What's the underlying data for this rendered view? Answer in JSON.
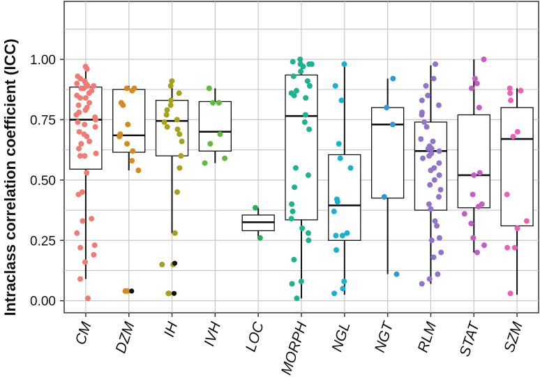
{
  "chart_data": {
    "type": "box",
    "title": "",
    "xlabel": "",
    "ylabel": "Intraclass correlation coefficient (ICC)",
    "ylim": [
      -0.05,
      1.24
    ],
    "yticks": [
      0.0,
      0.25,
      0.5,
      0.75,
      1.0
    ],
    "ytick_labels": [
      "0.00",
      "0.25",
      "0.50",
      "0.75",
      "1.00"
    ],
    "grid": true,
    "legend": "none",
    "categories": [
      "CM",
      "DZM",
      "IH",
      "IVH",
      "LOC",
      "MORPH",
      "NGL",
      "NGT",
      "RLM",
      "STAT",
      "SZM"
    ],
    "colors": [
      "#f07b73",
      "#d68a1c",
      "#a3a21a",
      "#63b940",
      "#22ad5a",
      "#1bb38e",
      "#17b2cf",
      "#2e98dd",
      "#8f74c9",
      "#c25ec2",
      "#ec5fb4"
    ],
    "boxes": [
      {
        "q1": 0.545,
        "median": 0.75,
        "q3": 0.885,
        "whisker_low": 0.09,
        "whisker_high": 0.97
      },
      {
        "q1": 0.615,
        "median": 0.685,
        "q3": 0.875,
        "whisker_low": 0.54,
        "whisker_high": 0.89
      },
      {
        "q1": 0.6,
        "median": 0.745,
        "q3": 0.83,
        "whisker_low": 0.28,
        "whisker_high": 0.91
      },
      {
        "q1": 0.62,
        "median": 0.7,
        "q3": 0.825,
        "whisker_low": 0.57,
        "whisker_high": 0.88
      },
      {
        "q1": 0.29,
        "median": 0.325,
        "q3": 0.355,
        "whisker_low": 0.26,
        "whisker_high": 0.385
      },
      {
        "q1": 0.335,
        "median": 0.765,
        "q3": 0.935,
        "whisker_low": 0.01,
        "whisker_high": 1.0
      },
      {
        "q1": 0.25,
        "median": 0.395,
        "q3": 0.605,
        "whisker_low": 0.025,
        "whisker_high": 0.98
      },
      {
        "q1": 0.425,
        "median": 0.73,
        "q3": 0.8,
        "whisker_low": 0.11,
        "whisker_high": 0.92
      },
      {
        "q1": 0.375,
        "median": 0.62,
        "q3": 0.74,
        "whisker_low": 0.07,
        "whisker_high": 0.975
      },
      {
        "q1": 0.385,
        "median": 0.52,
        "q3": 0.77,
        "whisker_low": 0.2,
        "whisker_high": 1.0
      },
      {
        "q1": 0.31,
        "median": 0.67,
        "q3": 0.8,
        "whisker_low": 0.025,
        "whisker_high": 0.88
      }
    ],
    "points": [
      {
        "category": "CM",
        "values": [
          0.97,
          0.96,
          0.93,
          0.92,
          0.91,
          0.9,
          0.9,
          0.89,
          0.89,
          0.88,
          0.88,
          0.87,
          0.86,
          0.85,
          0.84,
          0.84,
          0.82,
          0.81,
          0.8,
          0.79,
          0.78,
          0.77,
          0.76,
          0.75,
          0.74,
          0.73,
          0.72,
          0.7,
          0.69,
          0.68,
          0.66,
          0.65,
          0.63,
          0.61,
          0.6,
          0.6,
          0.53,
          0.45,
          0.44,
          0.34,
          0.33,
          0.33,
          0.28,
          0.23,
          0.22,
          0.19,
          0.16,
          0.09,
          0.01
        ]
      },
      {
        "category": "DZM",
        "values": [
          0.88,
          0.88,
          0.87,
          0.82,
          0.81,
          0.73,
          0.69,
          0.68,
          0.65,
          0.62,
          0.58,
          0.54,
          0.04,
          0.04
        ]
      },
      {
        "category": "IH",
        "values": [
          0.91,
          0.89,
          0.86,
          0.83,
          0.81,
          0.79,
          0.77,
          0.75,
          0.74,
          0.72,
          0.71,
          0.69,
          0.66,
          0.6,
          0.55,
          0.45,
          0.28,
          0.15,
          0.15,
          0.03,
          0.03
        ]
      },
      {
        "category": "IVH",
        "values": [
          0.88,
          0.82,
          0.82,
          0.69,
          0.65,
          0.59,
          0.57
        ]
      },
      {
        "category": "LOC",
        "values": [
          0.385,
          0.26
        ]
      },
      {
        "category": "MORPH",
        "values": [
          1.0,
          0.99,
          0.98,
          0.98,
          0.98,
          0.97,
          0.95,
          0.93,
          0.91,
          0.89,
          0.87,
          0.86,
          0.85,
          0.84,
          0.77,
          0.74,
          0.71,
          0.55,
          0.52,
          0.47,
          0.4,
          0.37,
          0.34,
          0.3,
          0.28,
          0.25,
          0.17,
          0.08,
          0.07,
          0.01
        ]
      },
      {
        "category": "NGL",
        "values": [
          0.98,
          0.89,
          0.83,
          0.65,
          0.59,
          0.55,
          0.42,
          0.41,
          0.37,
          0.28,
          0.27,
          0.27,
          0.21,
          0.08,
          0.05,
          0.03
        ]
      },
      {
        "category": "NGT",
        "values": [
          0.92,
          0.8,
          0.73,
          0.43,
          0.11
        ]
      },
      {
        "category": "RLM",
        "values": [
          0.98,
          0.92,
          0.89,
          0.85,
          0.83,
          0.81,
          0.78,
          0.77,
          0.74,
          0.72,
          0.67,
          0.66,
          0.64,
          0.63,
          0.63,
          0.62,
          0.61,
          0.6,
          0.59,
          0.57,
          0.55,
          0.54,
          0.52,
          0.5,
          0.48,
          0.46,
          0.43,
          0.4,
          0.38,
          0.33,
          0.31,
          0.26,
          0.25,
          0.2,
          0.18,
          0.11,
          0.09,
          0.07
        ]
      },
      {
        "category": "STAT",
        "values": [
          1.0,
          0.92,
          0.9,
          0.88,
          0.8,
          0.53,
          0.52,
          0.44,
          0.4,
          0.39,
          0.36,
          0.32,
          0.26,
          0.23,
          0.2
        ]
      },
      {
        "category": "SZM",
        "values": [
          0.88,
          0.87,
          0.86,
          0.83,
          0.7,
          0.68,
          0.44,
          0.33,
          0.3,
          0.22,
          0.22,
          0.03
        ]
      }
    ],
    "black_points": [
      {
        "category": "DZM",
        "values": [
          0.04
        ]
      },
      {
        "category": "IH",
        "values": [
          0.155,
          0.03
        ]
      }
    ]
  }
}
